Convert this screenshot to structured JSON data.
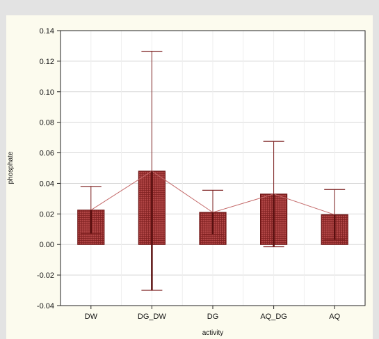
{
  "chart_data": {
    "type": "bar",
    "title": "",
    "xlabel": "activity",
    "ylabel": "phosphate",
    "ylim": [
      -0.04,
      0.14
    ],
    "yticks": [
      -0.04,
      -0.02,
      0.0,
      0.02,
      0.04,
      0.06,
      0.08,
      0.1,
      0.12,
      0.14
    ],
    "ytick_labels": [
      "-0.04",
      "-0.02",
      "0.00",
      "0.02",
      "0.04",
      "0.06",
      "0.08",
      "0.10",
      "0.12",
      "0.14"
    ],
    "categories": [
      "DW",
      "DG_DW",
      "DG",
      "AQ_DG",
      "AQ"
    ],
    "values": [
      0.0225,
      0.048,
      0.021,
      0.033,
      0.0195
    ],
    "error_upper": [
      0.038,
      0.1265,
      0.0355,
      0.0675,
      0.036
    ],
    "error_lower": [
      0.007,
      -0.03,
      0.0065,
      -0.0015,
      0.003
    ],
    "has_connecting_line": true,
    "grid": true,
    "colors": {
      "bar_fill": "#a83a3a",
      "bar_edge": "#6e1414",
      "error_bar": "#7a1c1c",
      "connecting_line": "#c46a6a",
      "grid": "#d8d8d8",
      "plot_background": "#ffffff",
      "frame_background": "#fcfbee"
    }
  }
}
